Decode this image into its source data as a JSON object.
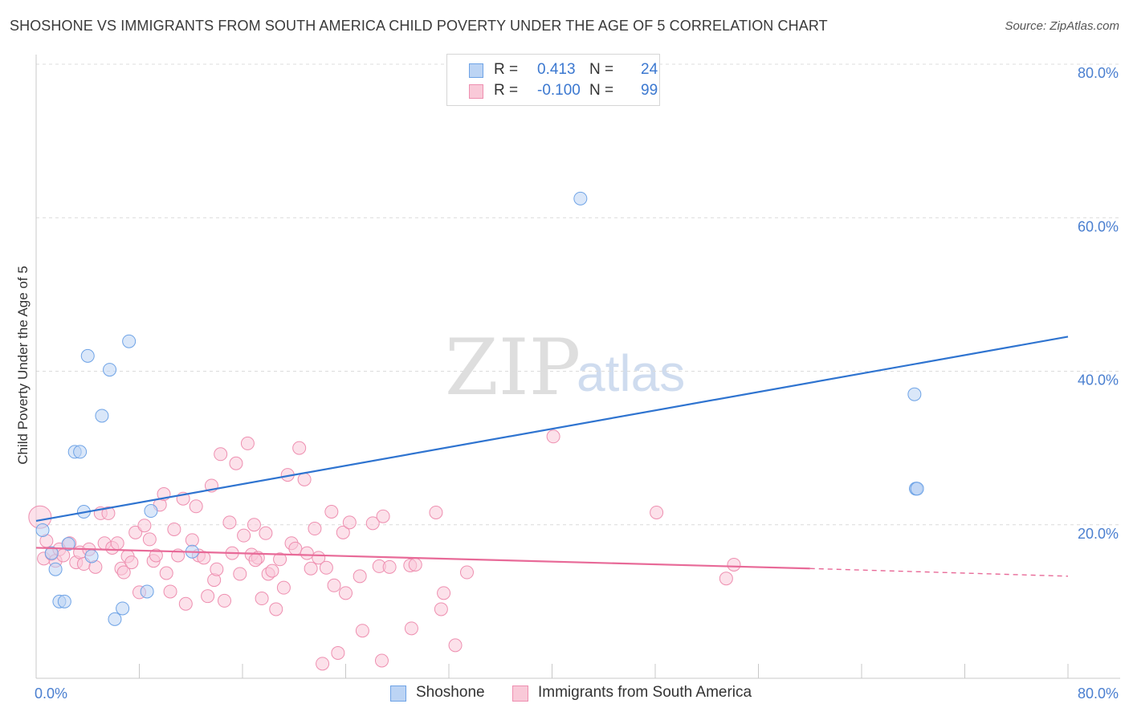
{
  "title": "SHOSHONE VS IMMIGRANTS FROM SOUTH AMERICA CHILD POVERTY UNDER THE AGE OF 5 CORRELATION CHART",
  "source": "Source: ZipAtlas.com",
  "watermark": {
    "zip": "ZIP",
    "atlas": "atlas"
  },
  "stats": [
    {
      "r_label": "R =",
      "r_value": "0.413",
      "n_label": "N =",
      "n_value": "24",
      "color": "#6ea3e6",
      "fill": "#bcd4f4"
    },
    {
      "r_label": "R =",
      "r_value": "-0.100",
      "n_label": "N =",
      "n_value": "99",
      "color": "#ee8fb0",
      "fill": "#f9c9d8"
    }
  ],
  "chart_data": {
    "type": "scatter",
    "title": "SHOSHONE VS IMMIGRANTS FROM SOUTH AMERICA CHILD POVERTY UNDER THE AGE OF 5 CORRELATION CHART",
    "xlabel": "",
    "ylabel": "Child Poverty Under the Age of 5",
    "xlim": [
      0,
      80
    ],
    "ylim": [
      0,
      80
    ],
    "x_tick_labels": [
      "0.0%",
      "80.0%"
    ],
    "y_ticks": [
      20,
      40,
      60,
      80
    ],
    "y_tick_labels": [
      "20.0%",
      "40.0%",
      "60.0%",
      "80.0%"
    ],
    "grid": "horizontal dashed",
    "legend_position": "bottom",
    "series": [
      {
        "name": "Shoshone",
        "color": "#6ea3e6",
        "fill": "#bcd4f4",
        "trend": {
          "x": [
            0,
            80
          ],
          "y": [
            20.5,
            44.5
          ]
        },
        "points": [
          [
            0.5,
            19.3
          ],
          [
            1.2,
            16.3
          ],
          [
            1.5,
            14.2
          ],
          [
            1.8,
            10.0
          ],
          [
            2.2,
            10.0
          ],
          [
            2.5,
            17.5
          ],
          [
            3.0,
            29.5
          ],
          [
            3.4,
            29.5
          ],
          [
            3.7,
            21.7
          ],
          [
            4.0,
            42.0
          ],
          [
            4.3,
            15.9
          ],
          [
            5.1,
            34.2
          ],
          [
            5.7,
            40.2
          ],
          [
            6.1,
            7.7
          ],
          [
            6.7,
            9.1
          ],
          [
            7.2,
            43.9
          ],
          [
            8.6,
            11.3
          ],
          [
            8.9,
            21.8
          ],
          [
            12.1,
            16.5
          ],
          [
            42.2,
            62.5
          ],
          [
            68.2,
            24.7
          ],
          [
            68.3,
            24.7
          ],
          [
            68.3,
            24.7
          ],
          [
            68.1,
            37.0
          ]
        ]
      },
      {
        "name": "Immigrants from South America",
        "color": "#ee8fb0",
        "fill": "#f9c9d8",
        "trend": {
          "x": [
            0,
            60
          ],
          "y": [
            17.0,
            14.3
          ],
          "dashed_x": [
            60,
            80
          ],
          "dashed_y": [
            14.3,
            13.3
          ]
        },
        "points": [
          [
            0.3,
            21.0
          ],
          [
            0.6,
            15.6
          ],
          [
            0.8,
            17.9
          ],
          [
            1.2,
            16.2
          ],
          [
            1.5,
            15.3
          ],
          [
            1.8,
            16.8
          ],
          [
            2.1,
            16.0
          ],
          [
            2.6,
            17.6
          ],
          [
            3.1,
            15.1
          ],
          [
            3.4,
            16.4
          ],
          [
            3.7,
            14.9
          ],
          [
            4.1,
            16.8
          ],
          [
            4.6,
            14.5
          ],
          [
            5.0,
            21.5
          ],
          [
            5.3,
            17.6
          ],
          [
            5.6,
            21.5
          ],
          [
            5.9,
            17.0
          ],
          [
            6.3,
            17.6
          ],
          [
            6.6,
            14.3
          ],
          [
            6.8,
            13.8
          ],
          [
            7.1,
            15.9
          ],
          [
            7.4,
            15.1
          ],
          [
            7.7,
            19.0
          ],
          [
            8.0,
            11.2
          ],
          [
            8.4,
            19.9
          ],
          [
            8.8,
            18.1
          ],
          [
            9.1,
            15.3
          ],
          [
            9.3,
            16.0
          ],
          [
            9.6,
            22.6
          ],
          [
            9.9,
            24.0
          ],
          [
            10.1,
            13.7
          ],
          [
            10.4,
            11.3
          ],
          [
            10.7,
            19.4
          ],
          [
            11.0,
            16.0
          ],
          [
            11.4,
            23.4
          ],
          [
            11.6,
            9.7
          ],
          [
            12.1,
            18.0
          ],
          [
            12.4,
            22.4
          ],
          [
            12.6,
            16.0
          ],
          [
            13.0,
            15.7
          ],
          [
            13.3,
            10.7
          ],
          [
            13.6,
            25.1
          ],
          [
            13.8,
            12.8
          ],
          [
            14.0,
            14.2
          ],
          [
            14.3,
            29.2
          ],
          [
            14.6,
            10.1
          ],
          [
            15.0,
            20.3
          ],
          [
            15.2,
            16.3
          ],
          [
            15.5,
            28.0
          ],
          [
            15.8,
            13.6
          ],
          [
            16.1,
            18.6
          ],
          [
            16.4,
            30.6
          ],
          [
            16.7,
            16.1
          ],
          [
            16.9,
            20.0
          ],
          [
            17.2,
            15.7
          ],
          [
            17.5,
            10.4
          ],
          [
            17.8,
            18.9
          ],
          [
            18.0,
            13.6
          ],
          [
            18.3,
            14.0
          ],
          [
            18.6,
            9.0
          ],
          [
            18.9,
            15.5
          ],
          [
            19.2,
            11.8
          ],
          [
            19.5,
            26.5
          ],
          [
            19.8,
            17.6
          ],
          [
            20.1,
            16.9
          ],
          [
            20.4,
            30.0
          ],
          [
            20.8,
            25.9
          ],
          [
            21.0,
            16.3
          ],
          [
            21.3,
            14.3
          ],
          [
            21.6,
            19.5
          ],
          [
            21.9,
            15.7
          ],
          [
            22.2,
            1.9
          ],
          [
            22.5,
            14.4
          ],
          [
            22.9,
            21.7
          ],
          [
            23.1,
            12.1
          ],
          [
            23.4,
            3.3
          ],
          [
            23.8,
            19.0
          ],
          [
            24.0,
            11.1
          ],
          [
            24.3,
            20.3
          ],
          [
            25.1,
            13.3
          ],
          [
            25.3,
            6.2
          ],
          [
            26.1,
            20.2
          ],
          [
            26.6,
            14.6
          ],
          [
            26.9,
            21.1
          ],
          [
            26.8,
            2.3
          ],
          [
            27.4,
            14.5
          ],
          [
            29.0,
            14.7
          ],
          [
            29.1,
            6.5
          ],
          [
            29.4,
            14.8
          ],
          [
            31.0,
            21.6
          ],
          [
            31.4,
            9.0
          ],
          [
            31.6,
            11.1
          ],
          [
            32.5,
            4.3
          ],
          [
            33.4,
            13.8
          ],
          [
            40.1,
            31.5
          ],
          [
            48.1,
            21.6
          ],
          [
            53.5,
            13.0
          ],
          [
            54.1,
            14.8
          ],
          [
            17.0,
            15.4
          ]
        ]
      }
    ]
  }
}
